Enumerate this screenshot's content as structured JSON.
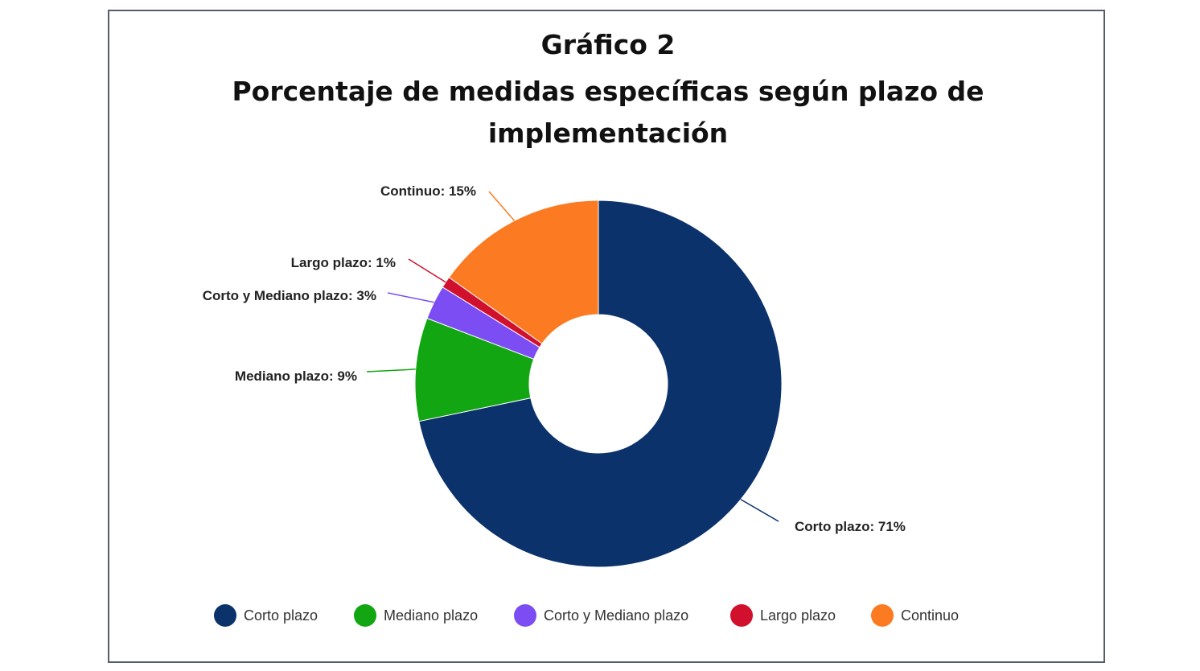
{
  "title_line1": "Gráfico 2",
  "title_line2": "Porcentaje de medidas específicas según plazo de implementación",
  "chart_data": {
    "type": "pie",
    "donut": true,
    "title": "Gráfico 2 Porcentaje de medidas específicas según plazo de implementación",
    "legend_position": "bottom",
    "categories": [
      "Corto plazo",
      "Mediano plazo",
      "Corto y Mediano plazo",
      "Largo plazo",
      "Continuo"
    ],
    "values": [
      71,
      9,
      3,
      1,
      15
    ],
    "unit": "%",
    "colors": [
      "#0b326b",
      "#11a612",
      "#7b4df2",
      "#d0102c",
      "#fb7a22"
    ],
    "data_labels": [
      "Corto plazo: 71%",
      "Mediano plazo: 9%",
      "Corto y Mediano plazo: 3%",
      "Largo plazo: 1%",
      "Continuo: 15%"
    ]
  }
}
